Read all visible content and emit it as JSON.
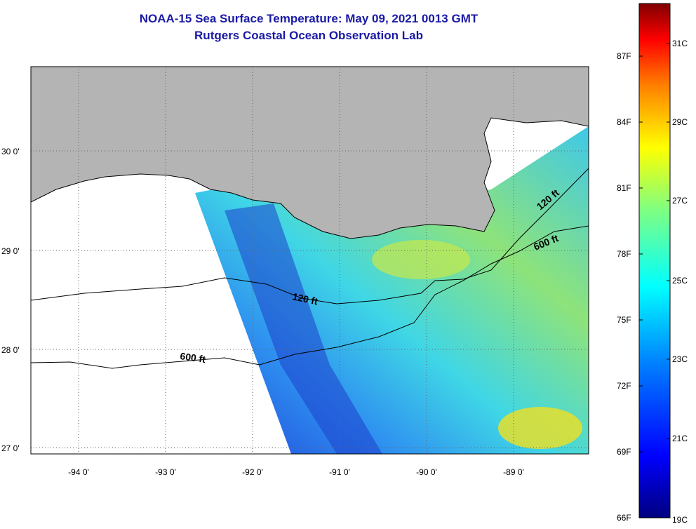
{
  "title": "NOAA-15 Sea Surface Temperature:  May 09, 2021 0013 GMT",
  "subtitle": "Rutgers Coastal Ocean Observation Lab",
  "axes": {
    "lat_labels": [
      "30 0'",
      "29 0'",
      "28 0'",
      "27 0'"
    ],
    "lon_labels": [
      "-94 0'",
      "-93 0'",
      "-92 0'",
      "-91 0'",
      "-90 0'",
      "-89 0'"
    ]
  },
  "contours": {
    "label_120_east": "120 ft",
    "label_600_east": "600 ft",
    "label_120_mid": "120 ft",
    "label_600_west": "600 ft"
  },
  "colorbar": {
    "fahrenheit_labels": [
      "87F",
      "84F",
      "81F",
      "78F",
      "75F",
      "72F",
      "69F",
      "66F"
    ],
    "celsius_labels": [
      "31C",
      "29C",
      "27C",
      "25C",
      "23C",
      "21C",
      "19C"
    ],
    "gradient_colors": [
      "#00007f",
      "#0000ff",
      "#0080ff",
      "#00ffff",
      "#80ff80",
      "#ffff00",
      "#ff8000",
      "#ff0000",
      "#800000"
    ]
  },
  "colors": {
    "land": "#b4b4b4",
    "title": "#1a1aa6",
    "contour": "#000000"
  }
}
